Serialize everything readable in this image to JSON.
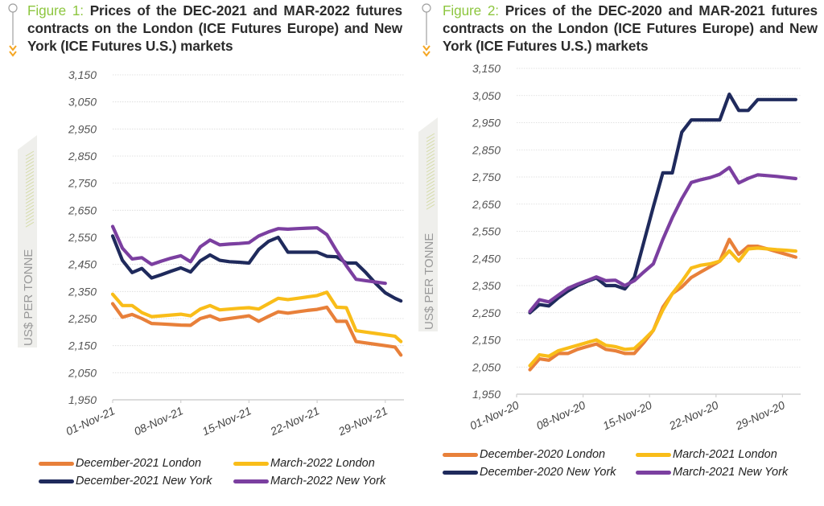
{
  "figures": [
    {
      "label": "Figure 1:",
      "title": "Prices of the DEC-2021 and MAR-2022 futures contracts on the London (ICE Futures Europe) and New York (ICE Futures U.S.) markets",
      "y_axis_title": "US$ PER TONNE"
    },
    {
      "label": "Figure 2:",
      "title": "Prices of the DEC-2020 and MAR-2021 futures contracts on the London (ICE Futures Europe) and New York (ICE Futures U.S.) markets",
      "y_axis_title": "US$ PER TONNE"
    }
  ],
  "colors": {
    "figure_label": "#8dc63f",
    "dec_london": "#e8803a",
    "mar_london": "#f9bd19",
    "dec_newyork": "#1f2a5c",
    "mar_newyork": "#7b3fa0",
    "gridline": "#d9d9d9",
    "axis": "#d0d0d0"
  },
  "chart_data": [
    {
      "type": "line",
      "title": "Prices of the DEC-2021 and MAR-2022 futures contracts on the London (ICE Futures Europe) and New York (ICE Futures U.S.) markets",
      "xlabel": "",
      "ylabel": "US$ PER TONNE",
      "x_unit": "day of November 2021",
      "xlim": [
        1,
        31
      ],
      "ylim": [
        1950,
        3150
      ],
      "y_ticks": [
        "3,150",
        "3,050",
        "2,950",
        "2,850",
        "2,750",
        "2,650",
        "2,550",
        "2,450",
        "2,350",
        "2,250",
        "2,150",
        "2,050",
        "1,950"
      ],
      "y_tick_values": [
        3150,
        3050,
        2950,
        2850,
        2750,
        2650,
        2550,
        2450,
        2350,
        2250,
        2150,
        2050,
        1950
      ],
      "x_ticks": [
        "01-Nov-21",
        "08-Nov-21",
        "15-Nov-21",
        "22-Nov-21",
        "29-Nov-21"
      ],
      "x_tick_values": [
        1,
        8,
        15,
        22,
        29
      ],
      "grid": true,
      "legend_position": "bottom",
      "series": [
        {
          "name": "December-2021 London",
          "color_key": "dec_london",
          "x": [
            1,
            2,
            3,
            4,
            5,
            6,
            7,
            8,
            9,
            10,
            11,
            12,
            13,
            14,
            15,
            16,
            17,
            18,
            19,
            20,
            21,
            22,
            23,
            24,
            25,
            26,
            27,
            28,
            29,
            30,
            30.6
          ],
          "values": [
            2305,
            2255,
            2265,
            2250,
            2232,
            2230,
            2228,
            2226,
            2225,
            2250,
            2260,
            2245,
            2250,
            2255,
            2260,
            2240,
            2258,
            2275,
            2270,
            2275,
            2280,
            2284,
            2292,
            2240,
            2240,
            2165,
            2160,
            2155,
            2150,
            2145,
            2115
          ]
        },
        {
          "name": "March-2022 London",
          "color_key": "mar_london",
          "x": [
            1,
            2,
            3,
            4,
            5,
            6,
            7,
            8,
            9,
            10,
            11,
            12,
            13,
            14,
            15,
            16,
            17,
            18,
            19,
            20,
            21,
            22,
            23,
            24,
            25,
            26,
            27,
            28,
            29,
            30,
            30.6
          ],
          "values": [
            2340,
            2298,
            2298,
            2272,
            2257,
            2260,
            2263,
            2266,
            2260,
            2285,
            2298,
            2282,
            2285,
            2288,
            2290,
            2285,
            2305,
            2325,
            2320,
            2325,
            2330,
            2335,
            2347,
            2292,
            2290,
            2205,
            2200,
            2195,
            2190,
            2185,
            2165
          ]
        },
        {
          "name": "December-2021 New York",
          "color_key": "dec_newyork",
          "x": [
            1,
            2,
            3,
            4,
            5,
            6,
            7,
            8,
            9,
            10,
            11,
            12,
            13,
            14,
            15,
            16,
            17,
            18,
            19,
            20,
            21,
            22,
            23,
            24,
            25,
            26,
            27,
            28,
            29,
            30,
            30.6
          ],
          "values": [
            2555,
            2465,
            2420,
            2435,
            2400,
            2412,
            2425,
            2437,
            2422,
            2463,
            2485,
            2465,
            2460,
            2458,
            2455,
            2505,
            2535,
            2550,
            2495,
            2495,
            2495,
            2495,
            2480,
            2478,
            2455,
            2455,
            2420,
            2380,
            2345,
            2325,
            2315
          ]
        },
        {
          "name": "March-2022 New York",
          "color_key": "mar_newyork",
          "x": [
            1,
            2,
            3,
            4,
            5,
            6,
            7,
            8,
            9,
            10,
            11,
            12,
            13,
            14,
            15,
            16,
            17,
            18,
            19,
            20,
            21,
            22,
            23,
            24,
            25,
            26,
            27,
            28,
            29
          ],
          "values": [
            2590,
            2510,
            2470,
            2475,
            2450,
            2462,
            2473,
            2482,
            2460,
            2515,
            2540,
            2522,
            2525,
            2527,
            2530,
            2555,
            2570,
            2582,
            2580,
            2582,
            2584,
            2585,
            2560,
            2500,
            2445,
            2395,
            2390,
            2385,
            2380
          ]
        }
      ]
    },
    {
      "type": "line",
      "title": "Prices of the DEC-2020 and MAR-2021 futures contracts on the London (ICE Futures Europe) and New York (ICE Futures U.S.) markets",
      "xlabel": "",
      "ylabel": "US$ PER TONNE",
      "x_unit": "day of November 2020",
      "xlim": [
        1,
        31
      ],
      "ylim": [
        1950,
        3150
      ],
      "y_ticks": [
        "3,150",
        "3,050",
        "2,950",
        "2,850",
        "2,750",
        "2,650",
        "2,550",
        "2,450",
        "2,350",
        "2,250",
        "2,150",
        "2,050",
        "1,950"
      ],
      "y_tick_values": [
        3150,
        3050,
        2950,
        2850,
        2750,
        2650,
        2550,
        2450,
        2350,
        2250,
        2150,
        2050,
        1950
      ],
      "x_ticks": [
        "01-Nov-20",
        "08-Nov-20",
        "15-Nov-20",
        "22-Nov-20",
        "29-Nov-20"
      ],
      "x_tick_values": [
        1,
        8,
        15,
        22,
        29
      ],
      "grid": true,
      "legend_position": "bottom",
      "series": [
        {
          "name": "December-2020 London",
          "color_key": "dec_london",
          "x": [
            2.4,
            3.4,
            4.4,
            5.4,
            6.4,
            7.4,
            8.4,
            9.4,
            10.4,
            11.4,
            12.4,
            13.4,
            14.4,
            15.4,
            16.4,
            17.4,
            18.4,
            19.4,
            20.4,
            21.4,
            22.4,
            23.4,
            24.4,
            25.4,
            26.4,
            27.4,
            28.4,
            29.4,
            30.4
          ],
          "values": [
            2040,
            2080,
            2075,
            2100,
            2100,
            2115,
            2125,
            2135,
            2115,
            2110,
            2100,
            2100,
            2140,
            2185,
            2270,
            2320,
            2345,
            2380,
            2400,
            2420,
            2440,
            2520,
            2465,
            2495,
            2495,
            2485,
            2475,
            2465,
            2455
          ]
        },
        {
          "name": "March-2021 London",
          "color_key": "mar_london",
          "x": [
            2.4,
            3.4,
            4.4,
            5.4,
            6.4,
            7.4,
            8.4,
            9.4,
            10.4,
            11.4,
            12.4,
            13.4,
            14.4,
            15.4,
            16.4,
            17.4,
            18.4,
            19.4,
            20.4,
            21.4,
            22.4,
            23.4,
            24.4,
            25.4,
            26.4,
            27.4,
            28.4,
            29.4,
            30.4
          ],
          "values": [
            2055,
            2095,
            2090,
            2110,
            2120,
            2130,
            2140,
            2150,
            2130,
            2125,
            2115,
            2118,
            2150,
            2185,
            2260,
            2320,
            2365,
            2415,
            2425,
            2430,
            2440,
            2478,
            2440,
            2485,
            2488,
            2485,
            2482,
            2480,
            2477
          ]
        },
        {
          "name": "December-2020 New York",
          "color_key": "dec_newyork",
          "x": [
            2.4,
            3.4,
            4.4,
            5.4,
            6.4,
            7.4,
            8.4,
            9.4,
            10.4,
            11.4,
            12.4,
            13.4,
            14.4,
            15.4,
            16.4,
            17.4,
            18.4,
            19.4,
            20.4,
            21.4,
            22.4,
            23.4,
            24.4,
            25.4,
            26.4,
            27.4,
            28.4,
            29.4,
            30.4
          ],
          "values": [
            2250,
            2280,
            2275,
            2305,
            2330,
            2350,
            2365,
            2378,
            2350,
            2350,
            2338,
            2380,
            2510,
            2640,
            2765,
            2765,
            2915,
            2960,
            2960,
            2960,
            2960,
            3055,
            2995,
            2995,
            3035,
            3035,
            3035,
            3035,
            3035
          ]
        },
        {
          "name": "March-2021 New York",
          "color_key": "mar_newyork",
          "x": [
            2.4,
            3.4,
            4.4,
            5.4,
            6.4,
            7.4,
            8.4,
            9.4,
            10.4,
            11.4,
            12.4,
            13.4,
            14.4,
            15.4,
            16.4,
            17.4,
            18.4,
            19.4,
            20.4,
            21.4,
            22.4,
            23.4,
            24.4,
            25.4,
            26.4,
            27.4,
            28.4,
            29.4,
            30.4
          ],
          "values": [
            2255,
            2298,
            2290,
            2315,
            2340,
            2355,
            2368,
            2382,
            2368,
            2370,
            2350,
            2368,
            2400,
            2430,
            2520,
            2600,
            2670,
            2730,
            2740,
            2748,
            2760,
            2785,
            2728,
            2745,
            2758,
            2755,
            2752,
            2748,
            2744
          ]
        }
      ]
    }
  ]
}
